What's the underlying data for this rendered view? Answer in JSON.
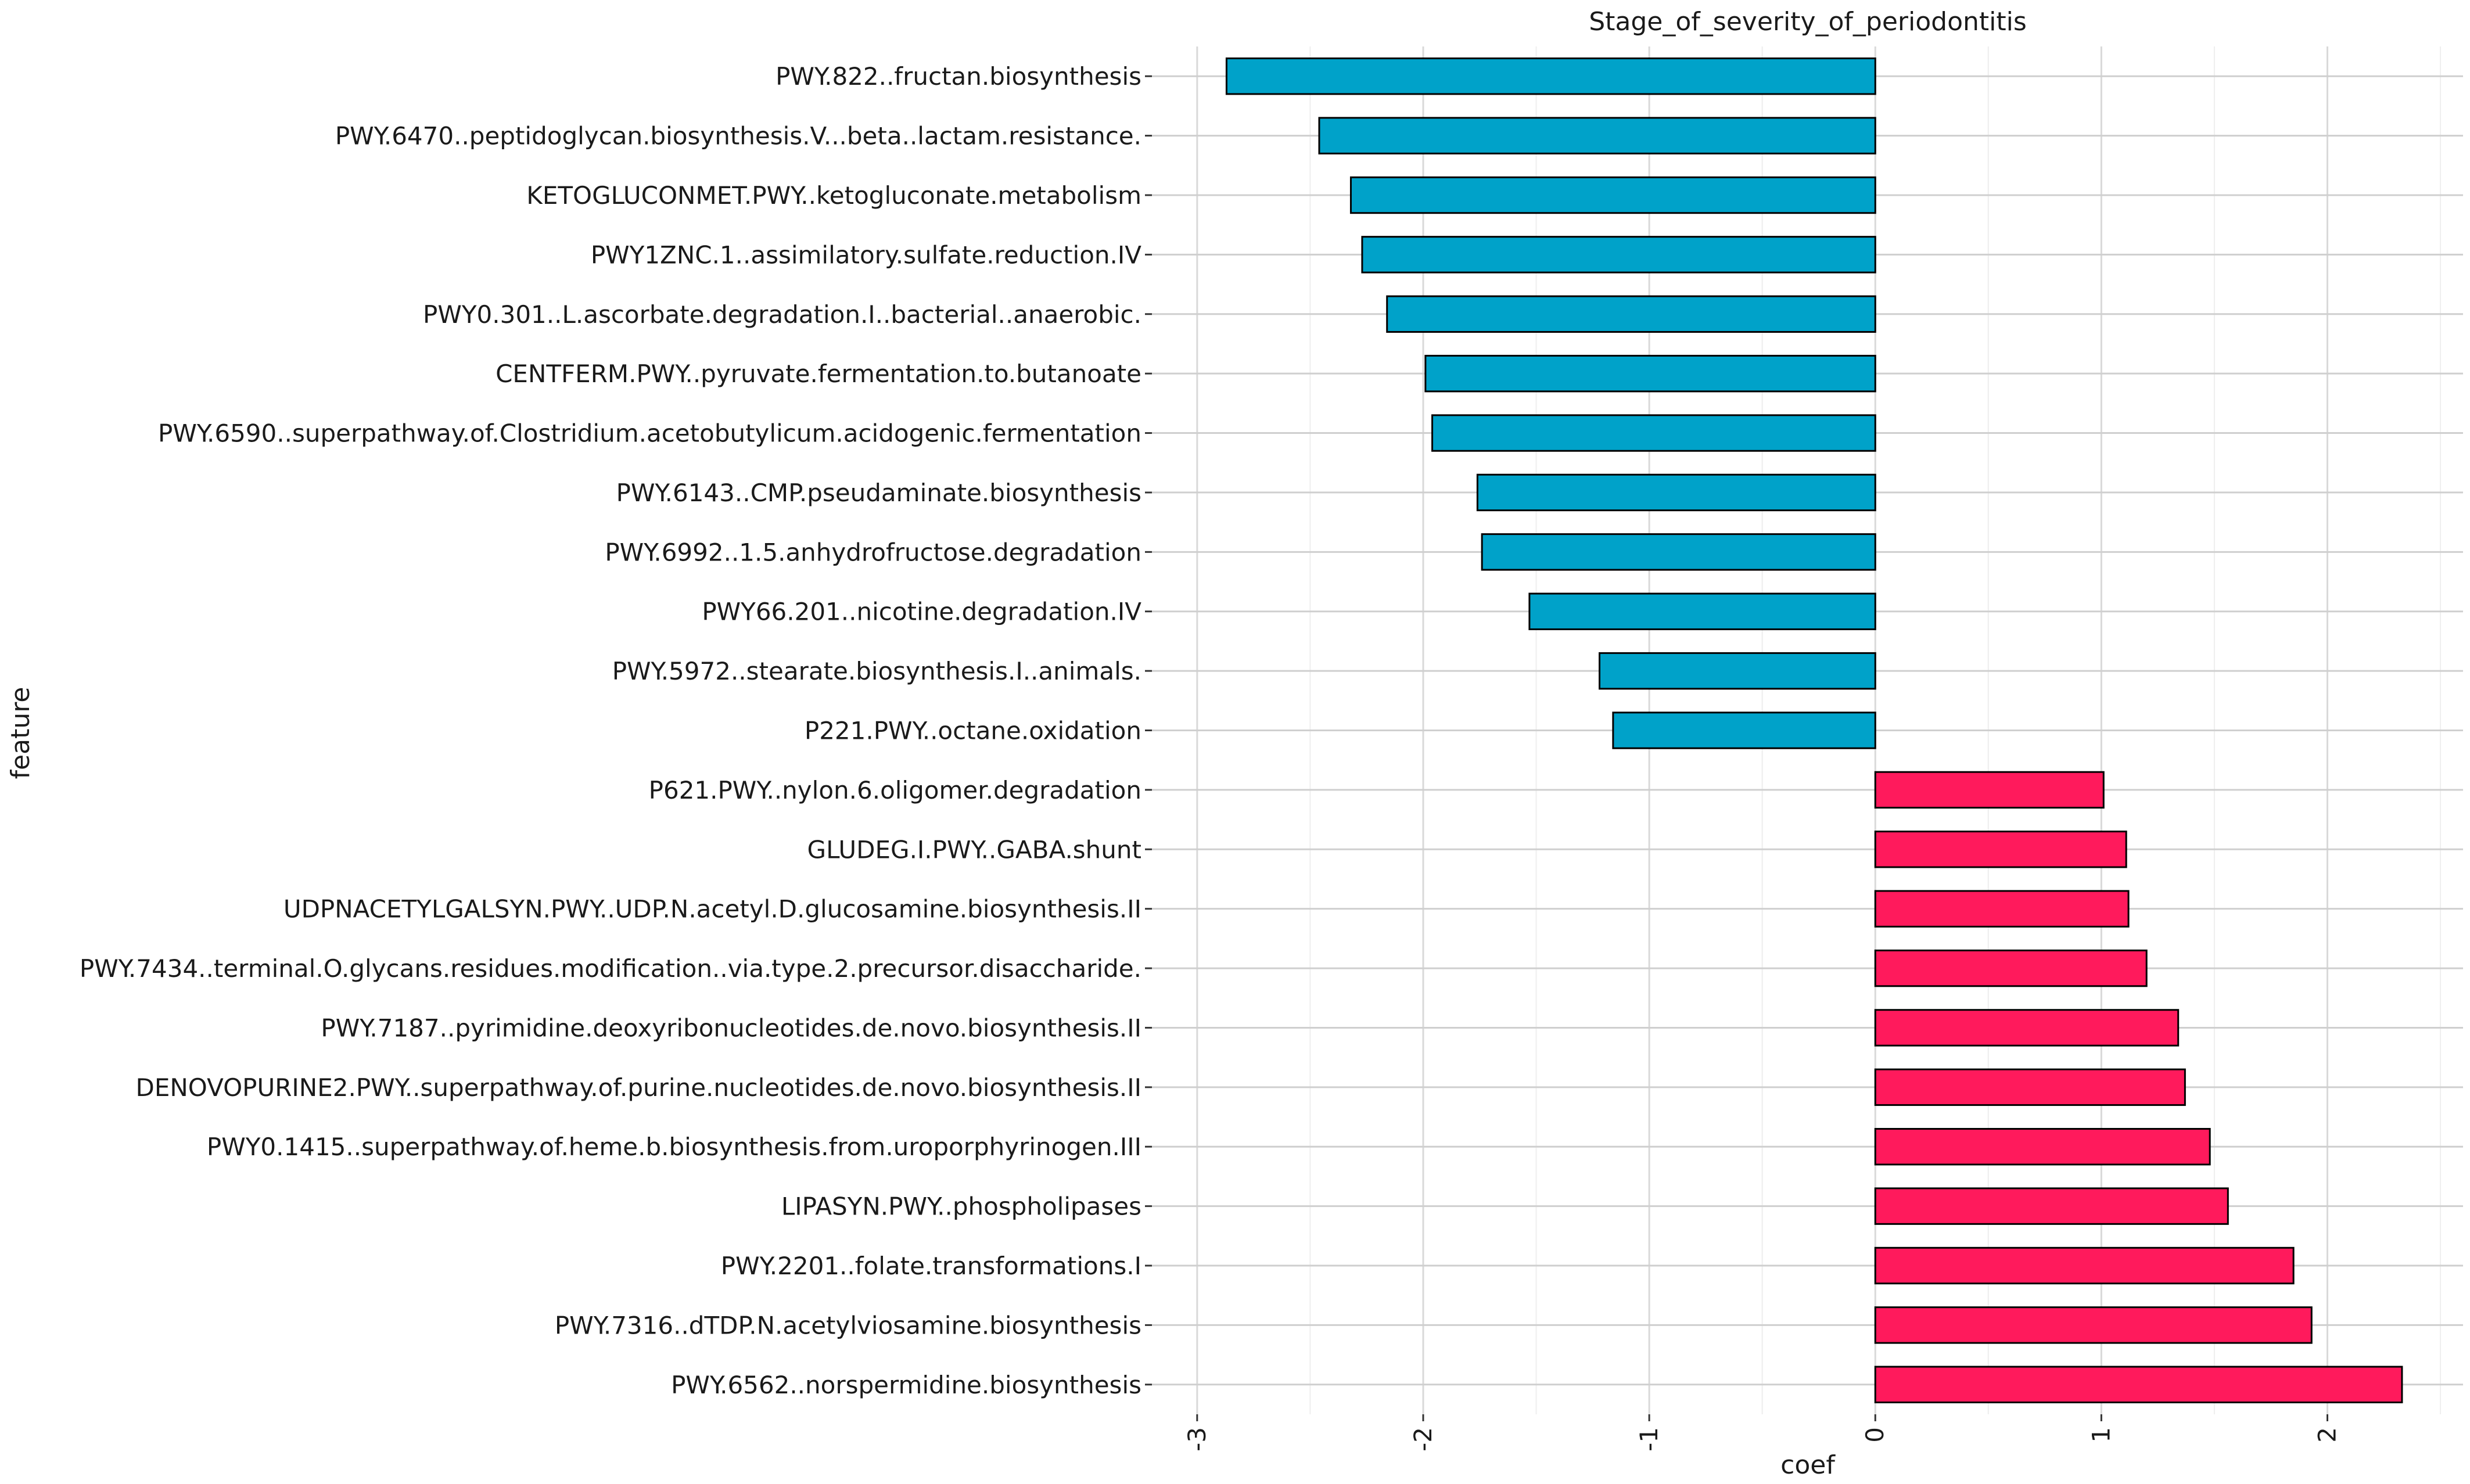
{
  "chart_data": {
    "type": "bar",
    "orientation": "horizontal",
    "title": "Stage_of_severity_of_periodontitis",
    "xlabel": "coef",
    "ylabel": "feature",
    "xlim": [
      -3.2,
      2.6
    ],
    "xticks": [
      -3,
      -2,
      -1,
      0,
      1,
      2
    ],
    "xtick_labels": [
      "-3",
      "-2",
      "-1",
      "0",
      "1",
      "2"
    ],
    "grid": true,
    "legend": "none",
    "colors": {
      "negative": "#00A2C9",
      "positive": "#FF1A5C",
      "outline": "#000000",
      "grid": "#d9d9d9"
    },
    "categories": [
      "PWY.822..fructan.biosynthesis",
      "PWY.6470..peptidoglycan.biosynthesis.V...beta..lactam.resistance.",
      "KETOGLUCONMET.PWY..ketogluconate.metabolism",
      "PWY1ZNC.1..assimilatory.sulfate.reduction.IV",
      "PWY0.301..L.ascorbate.degradation.I..bacterial..anaerobic.",
      "CENTFERM.PWY..pyruvate.fermentation.to.butanoate",
      "PWY.6590..superpathway.of.Clostridium.acetobutylicum.acidogenic.fermentation",
      "PWY.6143..CMP.pseudaminate.biosynthesis",
      "PWY.6992..1.5.anhydrofructose.degradation",
      "PWY66.201..nicotine.degradation.IV",
      "PWY.5972..stearate.biosynthesis.I..animals.",
      "P221.PWY..octane.oxidation",
      "P621.PWY..nylon.6.oligomer.degradation",
      "GLUDEG.I.PWY..GABA.shunt",
      "UDPNACETYLGALSYN.PWY..UDP.N.acetyl.D.glucosamine.biosynthesis.II",
      "PWY.7434..terminal.O.glycans.residues.modification..via.type.2.precursor.disaccharide.",
      "PWY.7187..pyrimidine.deoxyribonucleotides.de.novo.biosynthesis.II",
      "DENOVOPURINE2.PWY..superpathway.of.purine.nucleotides.de.novo.biosynthesis.II",
      "PWY0.1415..superpathway.of.heme.b.biosynthesis.from.uroporphyrinogen.III",
      "LIPASYN.PWY..phospholipases",
      "PWY.2201..folate.transformations.I",
      "PWY.7316..dTDP.N.acetylviosamine.biosynthesis",
      "PWY.6562..norspermidine.biosynthesis"
    ],
    "values": [
      -2.87,
      -2.46,
      -2.32,
      -2.27,
      -2.16,
      -1.99,
      -1.96,
      -1.76,
      -1.74,
      -1.53,
      -1.22,
      -1.16,
      1.01,
      1.11,
      1.12,
      1.2,
      1.34,
      1.37,
      1.48,
      1.56,
      1.85,
      1.93,
      2.33
    ]
  }
}
